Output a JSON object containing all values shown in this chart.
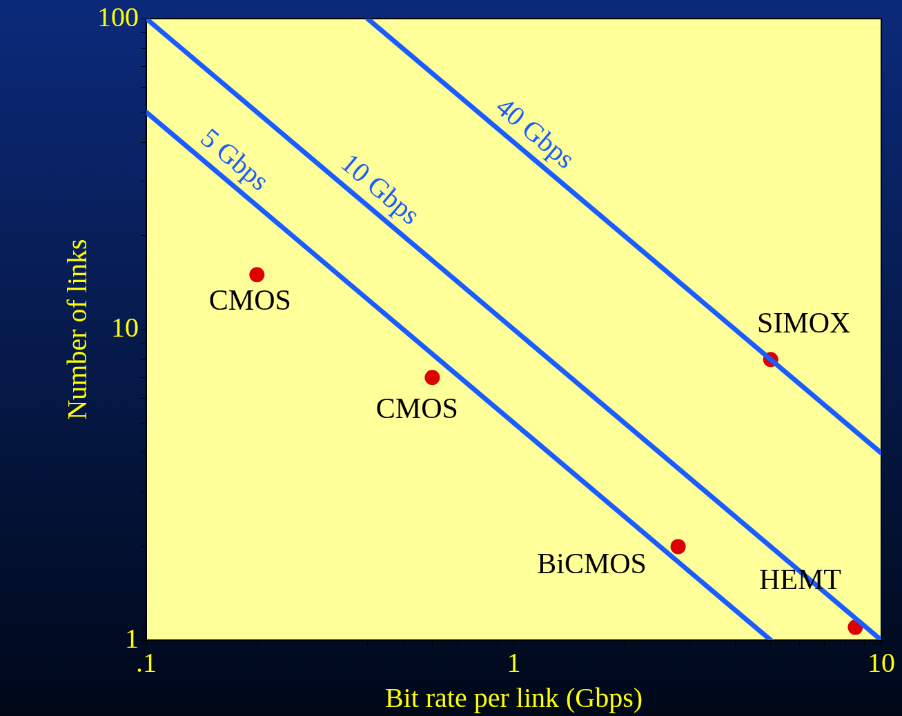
{
  "chart_data": {
    "type": "line",
    "xlabel": "Bit rate per link (Gbps)",
    "ylabel": "Number of links",
    "log": "xy",
    "grid": false,
    "legend": false,
    "xlim": [
      0.1,
      10
    ],
    "ylim": [
      1,
      100
    ],
    "xticks": [
      {
        "value": 0.1,
        "label": ".1"
      },
      {
        "value": 0.2,
        "label": null
      },
      {
        "value": 0.3,
        "label": null
      },
      {
        "value": 0.4,
        "label": null
      },
      {
        "value": 0.5,
        "label": null
      },
      {
        "value": 0.6,
        "label": null
      },
      {
        "value": 0.7,
        "label": null
      },
      {
        "value": 0.8,
        "label": null
      },
      {
        "value": 0.9,
        "label": null
      },
      1,
      {
        "value": 2,
        "label": null
      },
      {
        "value": 3,
        "label": null
      },
      {
        "value": 4,
        "label": null
      },
      {
        "value": 5,
        "label": null
      },
      {
        "value": 6,
        "label": null
      },
      {
        "value": 7,
        "label": null
      },
      {
        "value": 8,
        "label": null
      },
      {
        "value": 9,
        "label": null
      },
      10
    ],
    "yticks": [
      1,
      {
        "value": 2,
        "label": null
      },
      {
        "value": 3,
        "label": null
      },
      {
        "value": 4,
        "label": null
      },
      {
        "value": 5,
        "label": null
      },
      {
        "value": 6,
        "label": null
      },
      {
        "value": 7,
        "label": null
      },
      {
        "value": 8,
        "label": null
      },
      {
        "value": 9,
        "label": null
      },
      10,
      {
        "value": 20,
        "label": null
      },
      {
        "value": 30,
        "label": null
      },
      {
        "value": 40,
        "label": null
      },
      {
        "value": 50,
        "label": null
      },
      {
        "value": 60,
        "label": null
      },
      {
        "value": 70,
        "label": null
      },
      {
        "value": 80,
        "label": null
      },
      {
        "value": 90,
        "label": null
      },
      100
    ],
    "series": [
      {
        "name": "5 Gbps",
        "type": "line",
        "color": "#1a5cff",
        "marker": "none",
        "x": [
          0.1,
          5
        ],
        "values": [
          50,
          1
        ]
      },
      {
        "name": "10 Gbps",
        "type": "line",
        "color": "#1a5cff",
        "marker": "none",
        "x": [
          0.1,
          10
        ],
        "values": [
          100,
          1
        ]
      },
      {
        "name": "40 Gbps",
        "type": "line",
        "color": "#1a5cff",
        "marker": "none",
        "x": [
          0.4,
          10
        ],
        "values": [
          100,
          4
        ]
      },
      {
        "type": "scatter",
        "color": "#dd0000",
        "marker": "circle",
        "x": [
          0.2,
          0.6,
          2.8,
          5,
          8.5
        ],
        "values": [
          15,
          7,
          2,
          8,
          1.1
        ]
      }
    ],
    "annotations": [
      {
        "text": "CMOS",
        "x": 0.2,
        "y": 15
      },
      {
        "text": "CMOS",
        "x": 0.6,
        "y": 7
      },
      {
        "text": "BiCMOS",
        "x": 2.8,
        "y": 2
      },
      {
        "text": "SIMOX",
        "x": 5,
        "y": 8
      },
      {
        "text": "HEMT",
        "x": 8.5,
        "y": 1.1
      }
    ]
  }
}
